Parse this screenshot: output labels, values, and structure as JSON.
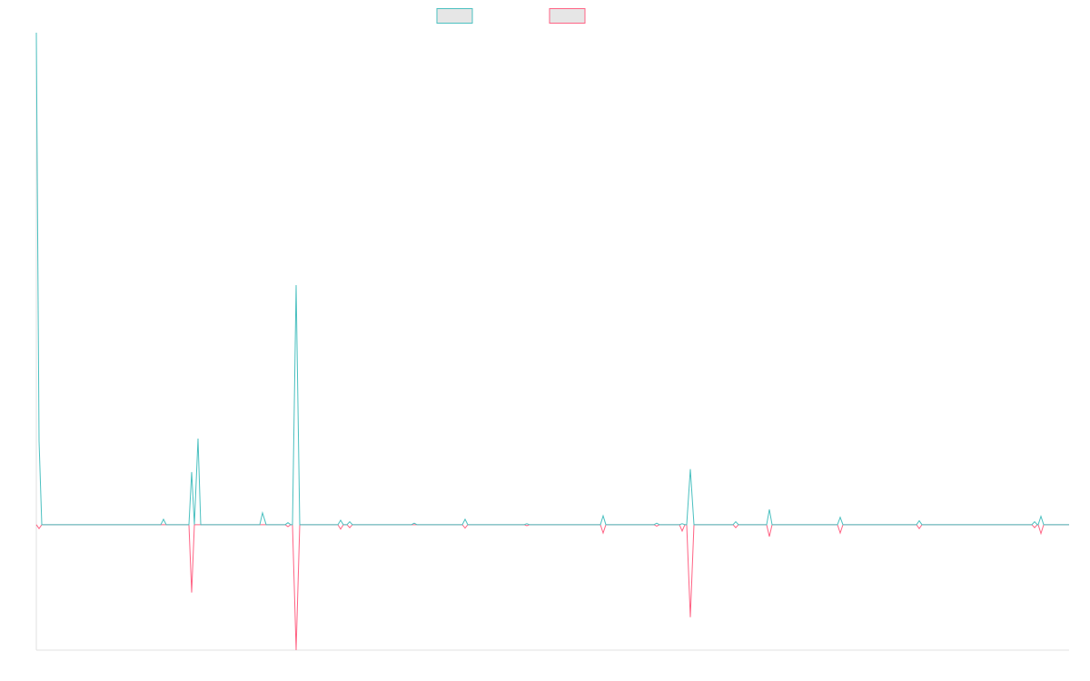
{
  "chart_data": {
    "type": "line",
    "x": [
      0,
      3,
      6,
      137,
      140,
      143,
      168,
      171,
      174,
      178,
      181,
      246,
      249,
      253,
      274,
      277,
      280,
      282,
      286,
      290,
      332,
      335,
      338,
      342,
      345,
      348,
      413,
      416,
      419,
      469,
      472,
      475,
      537,
      540,
      543,
      621,
      624,
      627,
      680,
      683,
      686,
      708,
      711,
      714,
      716,
      720,
      724,
      767,
      770,
      773,
      804,
      807,
      810,
      882,
      885,
      888,
      969,
      972,
      975,
      1096,
      1099,
      1102,
      1103,
      1106,
      1109,
      1137
    ],
    "series": [
      {
        "color": "#4bc0c0",
        "values": [
          100,
          17,
          0,
          0,
          1.1,
          0,
          0,
          10.7,
          0,
          17.5,
          0,
          0,
          2.4,
          0,
          0,
          0.4,
          0,
          0,
          48.7,
          0,
          0,
          0.9,
          0,
          0,
          0.6,
          0,
          0,
          0.3,
          0,
          0,
          1.1,
          0,
          0,
          0.2,
          0,
          0,
          1.8,
          0,
          0,
          0.3,
          0,
          0,
          0.2,
          0,
          0,
          11.3,
          0,
          0,
          0.6,
          0,
          0,
          3.1,
          0,
          0,
          1.5,
          0,
          0,
          0.8,
          0,
          0,
          0.6,
          0,
          0,
          1.7,
          0,
          0
        ]
      },
      {
        "color": "#ff6384",
        "values": [
          0,
          -0.8,
          0,
          0,
          0,
          0,
          0,
          -13.8,
          0,
          0,
          0,
          0,
          0,
          0,
          0,
          -0.4,
          0,
          0,
          -25.5,
          0,
          0,
          -0.9,
          0,
          0,
          -0.6,
          0,
          0,
          0,
          0,
          0,
          -0.7,
          0,
          0,
          -0.2,
          0,
          0,
          -1.7,
          0,
          0,
          -0.3,
          0,
          0,
          -1.3,
          0,
          0,
          -18.8,
          0,
          0,
          -0.6,
          0,
          0,
          -2.4,
          0,
          0,
          -1.7,
          0,
          0,
          -0.8,
          0,
          0,
          -0.6,
          0,
          0,
          -1.8,
          0,
          0
        ]
      }
    ],
    "xlim": [
      0,
      1137
    ],
    "ylim": [
      -25.5,
      100
    ]
  }
}
